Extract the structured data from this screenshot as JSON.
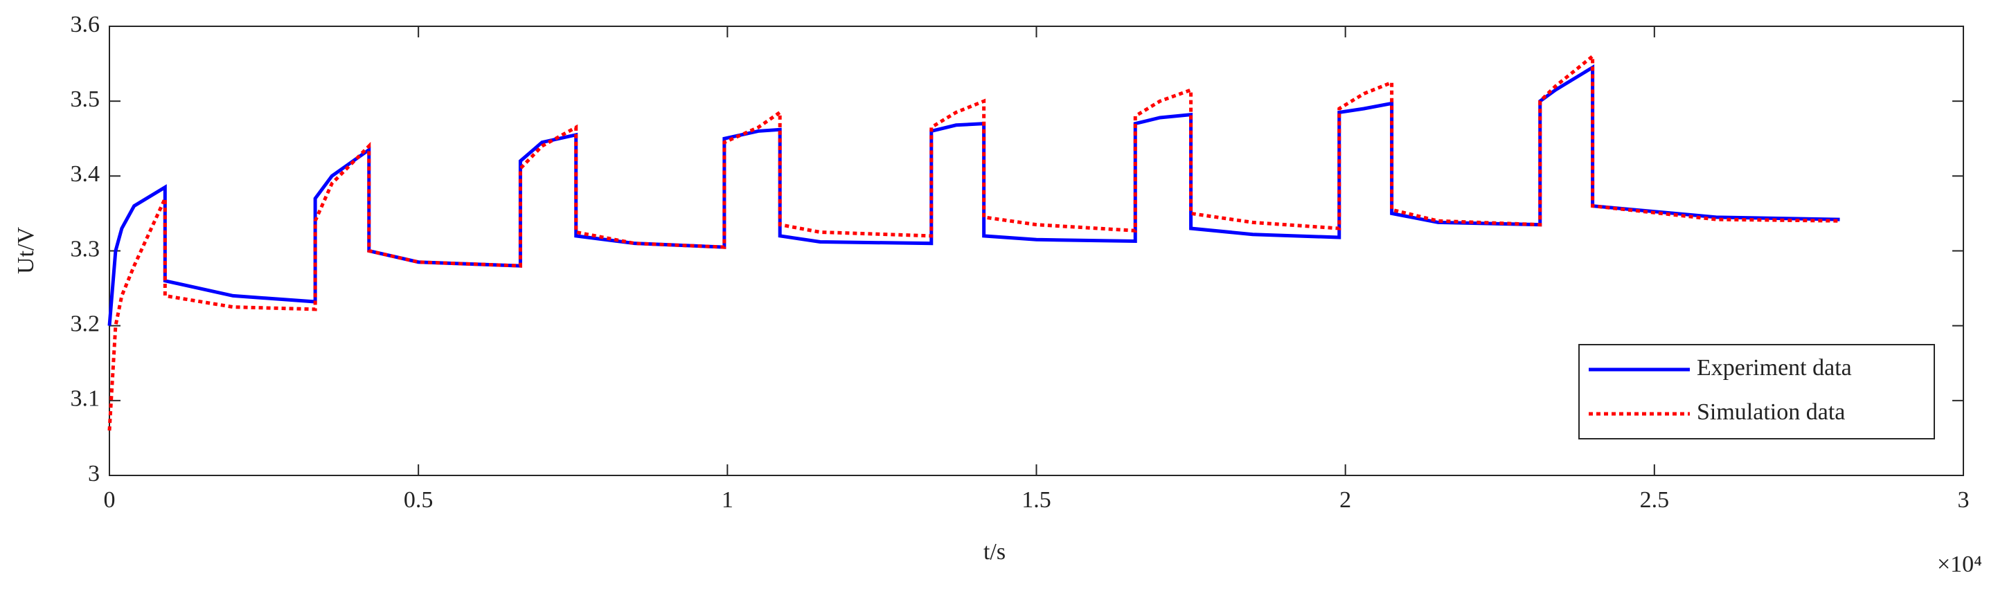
{
  "chart_data": {
    "type": "line",
    "xlabel": "t/s",
    "ylabel": "Ut/V",
    "x_multiplier_label": "×10⁴",
    "x": [
      0,
      0.01,
      0.02,
      0.04,
      0.09,
      0.09,
      0.2,
      0.333,
      0.333,
      0.36,
      0.42,
      0.42,
      0.5,
      0.665,
      0.665,
      0.7,
      0.755,
      0.755,
      0.85,
      0.995,
      0.995,
      1.05,
      1.085,
      1.085,
      1.15,
      1.33,
      1.33,
      1.37,
      1.415,
      1.415,
      1.5,
      1.66,
      1.66,
      1.7,
      1.75,
      1.75,
      1.85,
      1.99,
      1.99,
      2.03,
      2.075,
      2.075,
      2.15,
      2.315,
      2.315,
      2.34,
      2.4,
      2.4,
      2.6,
      2.8
    ],
    "series": [
      {
        "name": "Experiment data",
        "color": "#0000ff",
        "style": "solid",
        "values": [
          3.2,
          3.3,
          3.33,
          3.36,
          3.385,
          3.26,
          3.24,
          3.232,
          3.37,
          3.4,
          3.435,
          3.3,
          3.285,
          3.28,
          3.42,
          3.445,
          3.455,
          3.32,
          3.31,
          3.305,
          3.45,
          3.46,
          3.462,
          3.32,
          3.312,
          3.31,
          3.46,
          3.468,
          3.47,
          3.32,
          3.315,
          3.313,
          3.47,
          3.478,
          3.482,
          3.33,
          3.322,
          3.318,
          3.485,
          3.49,
          3.497,
          3.35,
          3.338,
          3.335,
          3.5,
          3.515,
          3.545,
          3.36,
          3.345,
          3.342
        ]
      },
      {
        "name": "Simulation data",
        "color": "#ff0000",
        "style": "dotted",
        "values": [
          3.06,
          3.2,
          3.24,
          3.28,
          3.37,
          3.24,
          3.225,
          3.222,
          3.34,
          3.39,
          3.44,
          3.3,
          3.285,
          3.28,
          3.41,
          3.44,
          3.465,
          3.325,
          3.31,
          3.305,
          3.445,
          3.465,
          3.485,
          3.335,
          3.325,
          3.32,
          3.465,
          3.485,
          3.5,
          3.345,
          3.335,
          3.327,
          3.48,
          3.5,
          3.515,
          3.35,
          3.338,
          3.33,
          3.49,
          3.51,
          3.525,
          3.355,
          3.34,
          3.335,
          3.5,
          3.52,
          3.56,
          3.36,
          3.342,
          3.34
        ]
      }
    ],
    "xlim": [
      0,
      3
    ],
    "xticks": [
      0,
      0.5,
      1,
      1.5,
      2,
      2.5,
      3
    ],
    "ylim": [
      3,
      3.6
    ],
    "yticks": [
      3,
      3.1,
      3.2,
      3.3,
      3.4,
      3.5,
      3.6
    ],
    "grid": false,
    "legend": "lower right"
  }
}
